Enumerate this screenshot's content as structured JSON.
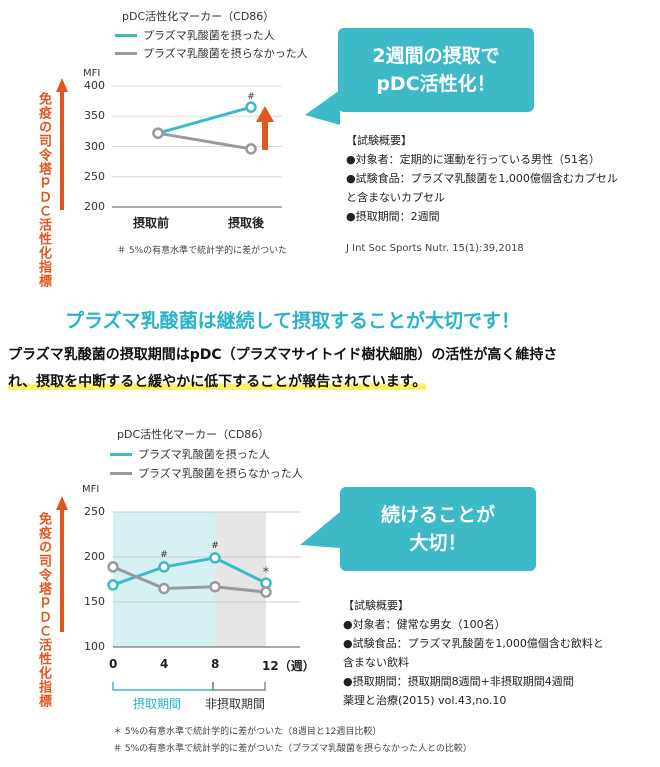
{
  "colors": {
    "teal": "#3eb9c8",
    "gray": "#9a9a9a",
    "orange": "#e0571f",
    "shade_intake": "#d5f1f4",
    "shade_nonintake": "#e6e6e6"
  },
  "chart1": {
    "title": "pDC活性化マーカー（CD86）",
    "legend": [
      "プラズマ乳酸菌を摂った人",
      "プラズマ乳酸菌を摂らなかった人"
    ],
    "ylabel": "MFI",
    "vertical_label": "免疫の司令塔ｐＤＣ活性化指標",
    "yticks": [
      "400",
      "350",
      "300",
      "250",
      "200"
    ],
    "xticks": [
      "摂取前",
      "摂取後"
    ],
    "mark": "#",
    "bubble": [
      "2週間の摂取で",
      "pDC活性化！"
    ],
    "note": "＃ 5%の有意水準で統計学的に差がついた",
    "citation": "J Int Soc Sports Nutr. 15(1):39,2018",
    "summary": [
      "【試験概要】",
      "●対象者：定期的に運動を行っている男性（51名）",
      "●試験食品：プラズマ乳酸菌を1,000億個含むカプセル",
      "と含まないカプセル",
      "●摂取期間：2週間"
    ]
  },
  "headline": "プラズマ乳酸菌は継続して摂取することが大切です！",
  "body_line1": "プラズマ乳酸菌の摂取期間はpDC（プラズマサイトイド樹状細胞）の活性が高く維持さ",
  "body_line2": "れ、摂取を中断すると緩やかに低下することが報告されています。",
  "chart2": {
    "title": "pDC活性化マーカー（CD86）",
    "legend": [
      "プラズマ乳酸菌を摂った人",
      "プラズマ乳酸菌を摂らなかった人"
    ],
    "ylabel": "MFI",
    "vertical_label": "免疫の司令塔ｐＤＣ活性化指標",
    "yticks": [
      "250",
      "200",
      "150",
      "100"
    ],
    "xticks": [
      "0",
      "4",
      "8",
      "12（週）"
    ],
    "mark_hash": "#",
    "mark_star": "＊",
    "periods": [
      "摂取期間",
      "非摂取期間"
    ],
    "bubble": [
      "続けることが",
      "大切！"
    ],
    "notes": [
      "＊ 5%の有意水準で統計学的に差がついた（8週目と12週目比較）",
      "＃ 5%の有意水準で統計学的に差がついた（プラズマ乳酸菌を摂らなかった人との比較）"
    ],
    "summary": [
      "【試験概要】",
      "●対象者：健常な男女（100名）",
      "●試験食品：プラズマ乳酸菌を1,000億個含む飲料と",
      "含まない飲料",
      "●摂取期間：摂取期間8週間+非摂取期間4週間",
      "薬理と治療(2015) vol.43,no.10"
    ]
  },
  "chart_data": [
    {
      "type": "line",
      "title": "pDC活性化マーカー（CD86）",
      "ylabel": "MFI",
      "categories": [
        "摂取前",
        "摂取後"
      ],
      "ylim": [
        200,
        400
      ],
      "series": [
        {
          "name": "プラズマ乳酸菌を摂った人",
          "values": [
            322,
            365
          ]
        },
        {
          "name": "プラズマ乳酸菌を摂らなかった人",
          "values": [
            322,
            296
          ]
        }
      ]
    },
    {
      "type": "line",
      "title": "pDC活性化マーカー（CD86）",
      "ylabel": "MFI",
      "x": [
        0,
        4,
        8,
        12
      ],
      "ylim": [
        100,
        250
      ],
      "series": [
        {
          "name": "プラズマ乳酸菌を摂った人",
          "values": [
            169,
            189,
            199,
            171
          ]
        },
        {
          "name": "プラズマ乳酸菌を摂らなかった人",
          "values": [
            189,
            165,
            167,
            161
          ]
        }
      ]
    }
  ]
}
